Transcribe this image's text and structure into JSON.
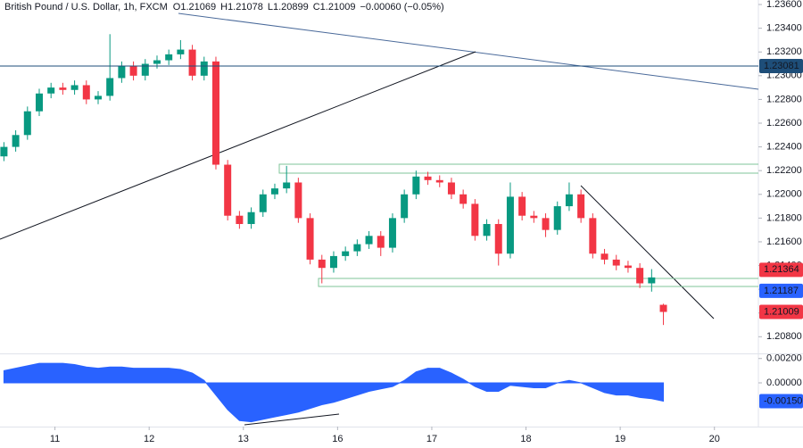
{
  "chart_data": [
    {
      "type": "candlestick",
      "title": "British Pound / U.S. Dollar, 1h, FXCM",
      "header_items": [
        "O1.21069",
        "H1.21078",
        "L1.20899",
        "C1.21009",
        "−0.00060 (−0.05%)"
      ],
      "up_color": "#089981",
      "down_color": "#f23645",
      "x": [
        1,
        4,
        7,
        10,
        13,
        16,
        19,
        22,
        25,
        28,
        31,
        34,
        37,
        40,
        43,
        46,
        49,
        52,
        55,
        58,
        61,
        64,
        67,
        70,
        73,
        76,
        79,
        82,
        85,
        88,
        91,
        94,
        97,
        100,
        103,
        106,
        109,
        112,
        115,
        118,
        121,
        124,
        127,
        130,
        133,
        136,
        139,
        142,
        145,
        148,
        151,
        154,
        157,
        160,
        163,
        166,
        169
      ],
      "open": [
        1.2232,
        1.224,
        1.225,
        1.227,
        1.2285,
        1.229,
        1.2288,
        1.2292,
        1.228,
        1.2283,
        1.2298,
        1.2308,
        1.23,
        1.231,
        1.2313,
        1.2318,
        1.2322,
        1.23,
        1.2312,
        1.2225,
        1.2182,
        1.2175,
        1.2185,
        1.22,
        1.2205,
        1.221,
        1.218,
        1.2145,
        1.2138,
        1.2148,
        1.2152,
        1.2158,
        1.2165,
        1.2155,
        1.218,
        1.22,
        1.2215,
        1.2212,
        1.221,
        1.22,
        1.2192,
        1.2165,
        1.2175,
        1.215,
        1.2198,
        1.2182,
        1.218,
        1.217,
        1.219,
        1.22,
        1.218,
        1.215,
        1.2145,
        1.214,
        1.2138,
        1.2125,
        1.21069
      ],
      "high": [
        1.2244,
        1.2254,
        1.2274,
        1.2289,
        1.2294,
        1.2294,
        1.2296,
        1.2296,
        1.2287,
        1.2335,
        1.2312,
        1.2312,
        1.2314,
        1.2317,
        1.2322,
        1.233,
        1.2326,
        1.2316,
        1.2316,
        1.2229,
        1.2186,
        1.2189,
        1.2204,
        1.2209,
        1.2224,
        1.2214,
        1.2184,
        1.2149,
        1.2152,
        1.2156,
        1.2162,
        1.2169,
        1.2169,
        1.2184,
        1.2204,
        1.222,
        1.2219,
        1.2216,
        1.2214,
        1.2204,
        1.2196,
        1.2179,
        1.2179,
        1.221,
        1.2202,
        1.2186,
        1.2184,
        1.2194,
        1.221,
        1.2204,
        1.2184,
        1.2154,
        1.2149,
        1.2144,
        1.2142,
        1.2137,
        1.21078
      ],
      "low": [
        1.2228,
        1.2236,
        1.2246,
        1.2266,
        1.2281,
        1.2284,
        1.2284,
        1.2276,
        1.2276,
        1.2279,
        1.2294,
        1.2296,
        1.2296,
        1.2306,
        1.2309,
        1.2314,
        1.2296,
        1.2296,
        1.2221,
        1.2178,
        1.2171,
        1.2171,
        1.2181,
        1.2196,
        1.2201,
        1.2176,
        1.2141,
        1.2125,
        1.2134,
        1.2144,
        1.2148,
        1.2154,
        1.2148,
        1.2151,
        1.2176,
        1.2196,
        1.2208,
        1.2206,
        1.2196,
        1.2188,
        1.2161,
        1.2161,
        1.214,
        1.2146,
        1.2178,
        1.2176,
        1.2164,
        1.2166,
        1.2186,
        1.2176,
        1.2146,
        1.2141,
        1.2136,
        1.2134,
        1.2121,
        1.2118,
        1.20899
      ],
      "close": [
        1.224,
        1.225,
        1.227,
        1.2285,
        1.229,
        1.2288,
        1.2292,
        1.228,
        1.2283,
        1.2298,
        1.2308,
        1.23,
        1.231,
        1.2313,
        1.2318,
        1.2322,
        1.23,
        1.2312,
        1.2225,
        1.2182,
        1.2175,
        1.2185,
        1.22,
        1.2205,
        1.221,
        1.218,
        1.2145,
        1.2138,
        1.2148,
        1.2152,
        1.2158,
        1.2165,
        1.2155,
        1.218,
        1.22,
        1.2215,
        1.2212,
        1.221,
        1.22,
        1.2192,
        1.2165,
        1.2175,
        1.215,
        1.2198,
        1.2182,
        1.218,
        1.217,
        1.219,
        1.22,
        1.218,
        1.215,
        1.2145,
        1.214,
        1.2138,
        1.2125,
        1.213,
        1.21009
      ],
      "xlim": [
        0,
        193.2
      ],
      "xticks": [
        {
          "value": 14,
          "label": "11"
        },
        {
          "value": 38,
          "label": "12"
        },
        {
          "value": 62,
          "label": "13"
        },
        {
          "value": 86,
          "label": "16"
        },
        {
          "value": 110,
          "label": "17"
        },
        {
          "value": 134,
          "label": "18"
        },
        {
          "value": 158,
          "label": "19"
        },
        {
          "value": 182,
          "label": "20"
        }
      ],
      "ylim": [
        1.20667,
        1.23638
      ],
      "yticks": [
        {
          "value": 1.236,
          "label": "1.23600"
        },
        {
          "value": 1.234,
          "label": "1.23400"
        },
        {
          "value": 1.232,
          "label": "1.23200"
        },
        {
          "value": 1.23,
          "label": "1.23000"
        },
        {
          "value": 1.228,
          "label": "1.22800"
        },
        {
          "value": 1.226,
          "label": "1.22600"
        },
        {
          "value": 1.224,
          "label": "1.22400"
        },
        {
          "value": 1.222,
          "label": "1.22200"
        },
        {
          "value": 1.22,
          "label": "1.22000"
        },
        {
          "value": 1.218,
          "label": "1.21800"
        },
        {
          "value": 1.216,
          "label": "1.21600"
        },
        {
          "value": 1.214,
          "label": "1.21400"
        },
        {
          "value": 1.212,
          "label": "1.21200"
        },
        {
          "value": 1.21,
          "label": "1.21000"
        },
        {
          "value": 1.208,
          "label": "1.20800"
        }
      ],
      "price_markers": [
        {
          "value": 1.23081,
          "label": "1.23081",
          "color": "#1e4e79",
          "line": true
        },
        {
          "value": 1.21364,
          "label": "1.21364",
          "color": "#f23645",
          "line": false
        },
        {
          "value": 1.21187,
          "label": "1.21187",
          "color": "#2962ff",
          "line": false
        },
        {
          "value": 1.21009,
          "label": "1.21009",
          "color": "#f23645",
          "line": false
        }
      ],
      "grid": false
    },
    {
      "type": "area",
      "color": "#2962ff",
      "x": [
        1,
        4,
        7,
        10,
        13,
        16,
        19,
        22,
        25,
        28,
        31,
        34,
        37,
        40,
        43,
        46,
        49,
        52,
        55,
        58,
        61,
        64,
        67,
        70,
        73,
        76,
        79,
        82,
        85,
        88,
        91,
        94,
        97,
        100,
        103,
        106,
        109,
        112,
        115,
        118,
        121,
        124,
        127,
        130,
        133,
        136,
        139,
        142,
        145,
        148,
        151,
        154,
        157,
        160,
        163,
        166,
        169
      ],
      "values": [
        0.001,
        0.0012,
        0.0014,
        0.0016,
        0.0016,
        0.0016,
        0.0015,
        0.0013,
        0.0012,
        0.0013,
        0.0013,
        0.0012,
        0.0012,
        0.0012,
        0.0012,
        0.0011,
        0.0008,
        0.0002,
        -0.001,
        -0.0022,
        -0.0031,
        -0.0032,
        -0.003,
        -0.0028,
        -0.0026,
        -0.0024,
        -0.0021,
        -0.0018,
        -0.0016,
        -0.0013,
        -0.001,
        -0.0007,
        -0.0005,
        -0.0003,
        0.0002,
        0.0009,
        0.0012,
        0.0012,
        0.0008,
        0.0003,
        -0.0003,
        -0.0007,
        -0.0007,
        -0.0002,
        -0.0003,
        -0.0004,
        -0.0004,
        0.0,
        0.0002,
        0.0,
        -0.0004,
        -0.0008,
        -0.001,
        -0.001,
        -0.0012,
        -0.0013,
        -0.0015
      ],
      "xlim": [
        0,
        193.2
      ],
      "ylim": [
        -0.0033,
        0.0022
      ],
      "yticks": [
        {
          "value": 0.002,
          "label": "0.00200"
        },
        {
          "value": 0,
          "label": "0.00000"
        }
      ],
      "price_markers": [
        {
          "value": -0.0015,
          "label": "-0.00150",
          "color": "#2962ff",
          "line": false
        }
      ]
    }
  ]
}
